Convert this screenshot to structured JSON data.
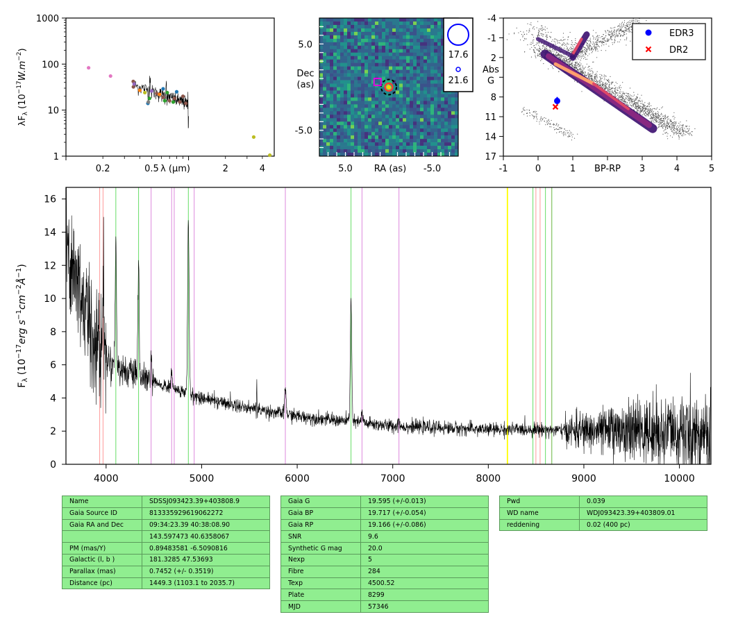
{
  "colors": {
    "axis": "#000000",
    "table_bg": "#90ee90",
    "spectrum": "#000000"
  },
  "chart_data": [
    {
      "type": "scatter",
      "title": "",
      "ylabel": "λF_λ (10^-17 W.m^-2)",
      "xlabel": "λ (μm)",
      "x_scale": "log",
      "y_scale": "log",
      "xlim": [
        0.1,
        5.0
      ],
      "ylim": [
        1,
        1000
      ],
      "xtick_labels": [
        "0.2",
        "0.5",
        "λ (μm)",
        "2",
        "4"
      ],
      "ytick_labels": [
        "1",
        "10",
        "100",
        "1000"
      ],
      "series": [
        {
          "points": [
            {
              "x": 0.153,
              "y": 83,
              "color": "#e377c2"
            },
            {
              "x": 0.231,
              "y": 55,
              "color": "#e377c2"
            },
            {
              "x": 0.354,
              "y": 42,
              "color": "#8c564b"
            },
            {
              "x": 0.355,
              "y": 32,
              "color": "#8c564b"
            },
            {
              "x": 0.36,
              "y": 37,
              "color": "#9467bd"
            },
            {
              "x": 0.4,
              "y": 27,
              "color": "#ff7f0e"
            },
            {
              "x": 0.44,
              "y": 24,
              "color": "#bcbd22"
            },
            {
              "x": 0.466,
              "y": 14,
              "color": "#1f77b4"
            },
            {
              "x": 0.47,
              "y": 15,
              "color": "#7f7f7f"
            },
            {
              "x": 0.48,
              "y": 18,
              "color": "#2ca02c"
            },
            {
              "x": 0.5,
              "y": 26,
              "color": "#9467bd"
            },
            {
              "x": 0.55,
              "y": 23,
              "color": "#8c564b"
            },
            {
              "x": 0.58,
              "y": 22,
              "color": "#ff7f0e"
            },
            {
              "x": 0.62,
              "y": 19,
              "color": "#8c564b"
            },
            {
              "x": 0.62,
              "y": 29,
              "color": "#1f77b4"
            },
            {
              "x": 0.64,
              "y": 16,
              "color": "#2ca02c"
            },
            {
              "x": 0.67,
              "y": 24,
              "color": "#2ca02c"
            },
            {
              "x": 0.7,
              "y": 16,
              "color": "#8c564b"
            },
            {
              "x": 0.75,
              "y": 15,
              "color": "#2ca02c"
            },
            {
              "x": 0.77,
              "y": 18,
              "color": "#8c564b"
            },
            {
              "x": 0.8,
              "y": 25,
              "color": "#1f77b4"
            },
            {
              "x": 0.85,
              "y": 15,
              "color": "#8c564b"
            },
            {
              "x": 0.9,
              "y": 20,
              "color": "#8c564b"
            },
            {
              "x": 0.95,
              "y": 14,
              "color": "#8c564b"
            },
            {
              "x": 3.4,
              "y": 2.6,
              "color": "#bcbd22"
            },
            {
              "x": 4.6,
              "y": 1.05,
              "color": "#bcbd22"
            }
          ]
        }
      ]
    },
    {
      "type": "heatmap",
      "ylabel": "Dec (as)",
      "xlabel": "RA (as)",
      "xlim": [
        8.0,
        -8.0
      ],
      "ylim": [
        -8.0,
        8.0
      ],
      "xtick_labels": [
        "5.0",
        "-5.0"
      ],
      "ytick_labels": [
        "5.0",
        "-5.0"
      ],
      "legend": {
        "placement": "top-right",
        "entries": [
          "17.6",
          "21.6"
        ]
      },
      "markers": [
        {
          "ra": 0.0,
          "dec": 0.0,
          "kind": "target"
        },
        {
          "ra": 1.3,
          "dec": 0.6,
          "kind": "proper-motion-start"
        }
      ]
    },
    {
      "type": "scatter",
      "xlabel": "BP-RP",
      "ylabel": "Abs G",
      "xlim": [
        -1,
        5
      ],
      "ylim": [
        17,
        -4
      ],
      "xtick_labels": [
        "-1",
        "0",
        "1",
        "BP-RP",
        "3",
        "4",
        "5"
      ],
      "ytick_labels": [
        "-4",
        "-1",
        "2",
        "Abs G",
        "8",
        "11",
        "14",
        "17"
      ],
      "legend": {
        "placement": "top-right",
        "entries": [
          "EDR3",
          "DR2"
        ]
      },
      "series": [
        {
          "name": "EDR3",
          "x": [
            0.55
          ],
          "y": [
            8.6
          ],
          "yerr": [
            0.6
          ],
          "marker": "circle",
          "color": "#0000ff"
        },
        {
          "name": "DR2",
          "x": [
            0.5
          ],
          "y": [
            9.5
          ],
          "marker": "x",
          "color": "#ff0000"
        }
      ]
    },
    {
      "type": "line",
      "xlabel": "",
      "ylabel": "F_λ (10^-17 erg s^-1 cm^-2 Å^-1)",
      "xlim": [
        3580,
        10330
      ],
      "ylim": [
        0,
        16.7
      ],
      "xtick_labels": [
        "4000",
        "5000",
        "6000",
        "7000",
        "8000",
        "9000",
        "10000"
      ],
      "ytick_labels": [
        "0",
        "2",
        "4",
        "6",
        "8",
        "10",
        "12",
        "14",
        "16"
      ],
      "shape": [
        {
          "x": 3580,
          "y": 13.5
        },
        {
          "x": 3700,
          "y": 11.0
        },
        {
          "x": 3850,
          "y": 8.0
        },
        {
          "x": 4000,
          "y": 6.4
        },
        {
          "x": 4200,
          "y": 5.6
        },
        {
          "x": 4500,
          "y": 4.9
        },
        {
          "x": 5000,
          "y": 4.0
        },
        {
          "x": 5500,
          "y": 3.4
        },
        {
          "x": 6000,
          "y": 2.9
        },
        {
          "x": 6500,
          "y": 2.6
        },
        {
          "x": 7000,
          "y": 2.3
        },
        {
          "x": 7500,
          "y": 2.2
        },
        {
          "x": 8000,
          "y": 2.1
        },
        {
          "x": 8500,
          "y": 2.1
        },
        {
          "x": 9000,
          "y": 2.0
        },
        {
          "x": 9500,
          "y": 2.0
        },
        {
          "x": 10000,
          "y": 1.9
        },
        {
          "x": 10330,
          "y": 1.9
        }
      ],
      "emission_peaks": [
        {
          "x": 3970,
          "height": 4.5
        },
        {
          "x": 4102,
          "height": 8.0
        },
        {
          "x": 4340,
          "height": 7.0
        },
        {
          "x": 4471,
          "height": 1.5
        },
        {
          "x": 4686,
          "height": 1.0
        },
        {
          "x": 4861,
          "height": 10.5
        },
        {
          "x": 5577,
          "height": 2.0
        },
        {
          "x": 5876,
          "height": 1.6
        },
        {
          "x": 6563,
          "height": 7.5
        },
        {
          "x": 6678,
          "height": 0.6
        },
        {
          "x": 7065,
          "height": 0.4
        }
      ],
      "line_markers": [
        {
          "x": 3933,
          "color": "#ff9999"
        },
        {
          "x": 3968,
          "color": "#ff9999"
        },
        {
          "x": 4102,
          "color": "#66dd66"
        },
        {
          "x": 4340,
          "color": "#66dd66"
        },
        {
          "x": 4471,
          "color": "#dd88dd"
        },
        {
          "x": 4686,
          "color": "#dd88dd"
        },
        {
          "x": 4713,
          "color": "#dd88dd"
        },
        {
          "x": 4861,
          "color": "#66dd66"
        },
        {
          "x": 4922,
          "color": "#dd88dd"
        },
        {
          "x": 5876,
          "color": "#dd88dd"
        },
        {
          "x": 6563,
          "color": "#66dd66"
        },
        {
          "x": 6678,
          "color": "#dd88dd"
        },
        {
          "x": 7065,
          "color": "#dd88dd"
        },
        {
          "x": 8200,
          "color": "#ffff00"
        },
        {
          "x": 8467,
          "color": "#66dd66"
        },
        {
          "x": 8498,
          "color": "#ff9999"
        },
        {
          "x": 8542,
          "color": "#ff9999"
        },
        {
          "x": 8598,
          "color": "#66dd66"
        },
        {
          "x": 8662,
          "color": "#ff9999"
        },
        {
          "x": 8665,
          "color": "#66dd66"
        }
      ]
    }
  ],
  "tables": [
    [
      [
        "Name",
        "SDSSJ093423.39+403808.9"
      ],
      [
        "Gaia Source ID",
        "813335929619062272"
      ],
      [
        "Gaia RA and Dec",
        "09:34:23.39     40:38:08.90"
      ],
      [
        "",
        "143.597473     40.6358067"
      ],
      [
        "PM (mas/Y)",
        "0.89483581     -6.5090816"
      ],
      [
        "Galactic (l, b )",
        "181.3285     47.53693"
      ],
      [
        "Parallax (mas)",
        "0.7452 (+/- 0.3519)"
      ],
      [
        "Distance (pc)",
        "1449.3 (1103.1 to 2035.7)"
      ]
    ],
    [
      [
        "Gaia G",
        "19.595 (+/-0.013)"
      ],
      [
        "Gaia BP",
        "19.717 (+/-0.054)"
      ],
      [
        "Gaia RP",
        "19.166 (+/-0.086)"
      ],
      [
        "SNR",
        "9.6"
      ],
      [
        "Synthetic G mag",
        "20.0"
      ],
      [
        "Nexp",
        "5"
      ],
      [
        "Fibre",
        "284"
      ],
      [
        "Texp",
        "4500.52"
      ],
      [
        "Plate",
        "8299"
      ],
      [
        "MJD",
        "57346"
      ]
    ],
    [
      [
        "Pwd",
        "0.039"
      ],
      [
        "WD name",
        "WDJ093423.39+403809.01"
      ],
      [
        "reddening",
        "0.02 (400 pc)"
      ]
    ]
  ]
}
